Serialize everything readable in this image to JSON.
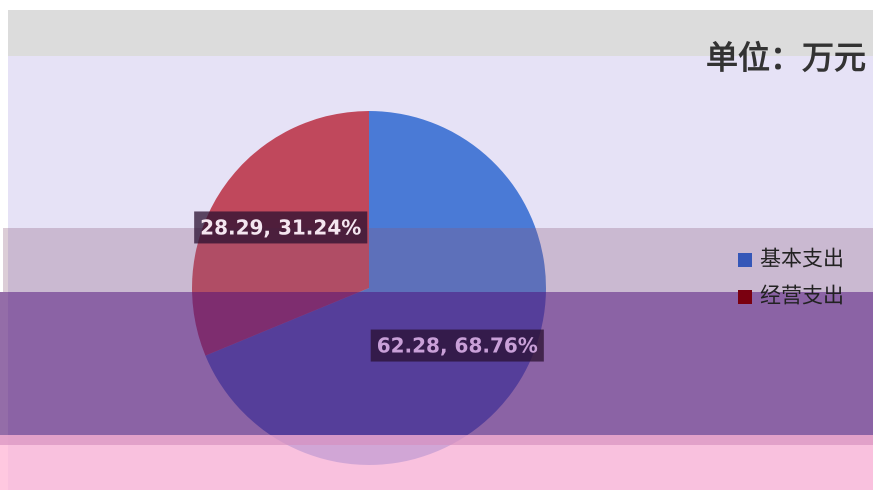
{
  "chart_data": {
    "type": "pie",
    "title": "单位：万元",
    "categories": [
      "基本支出",
      "经营支出"
    ],
    "values": [
      62.28,
      28.29
    ],
    "value_labels": [
      "62.28, 68.76%",
      "28.29, 31.24%"
    ],
    "colors": [
      "#4a7ad6",
      "#c0485c"
    ],
    "legend": "right"
  }
}
